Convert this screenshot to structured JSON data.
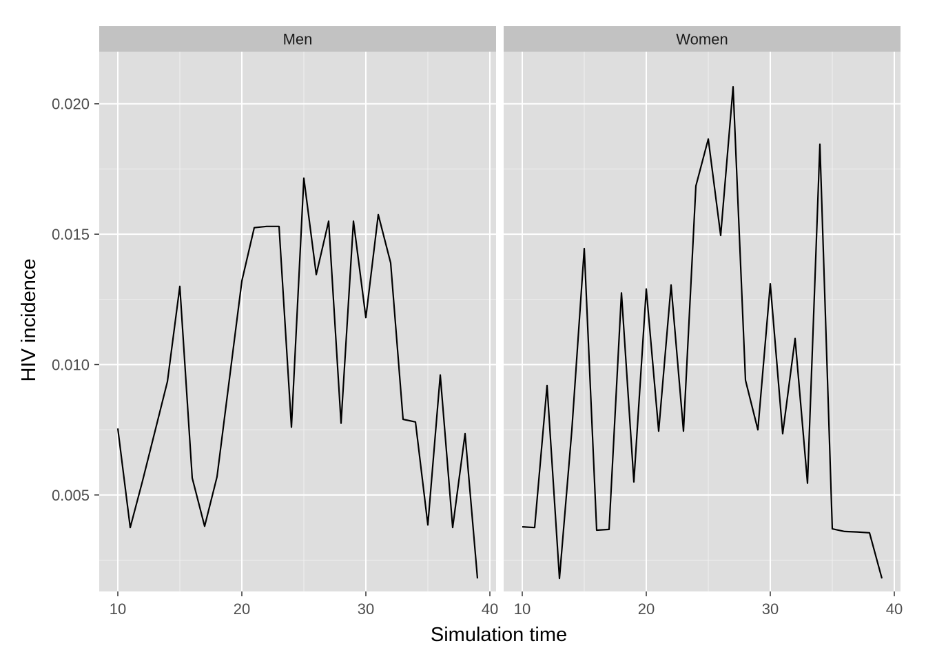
{
  "chart_data": {
    "type": "line",
    "xlabel": "Simulation time",
    "ylabel": "HIV incidence",
    "xlim": [
      8.5,
      40.5
    ],
    "ylim": [
      0.0013,
      0.022
    ],
    "x_ticks": [
      10,
      20,
      30,
      40
    ],
    "y_ticks": [
      0.005,
      0.01,
      0.015,
      0.02
    ],
    "y_tick_labels": [
      "0.005",
      "0.010",
      "0.015",
      "0.020"
    ],
    "grid": true,
    "colors": {
      "panel_bg": "#dedede",
      "strip_bg": "#c2c2c2",
      "grid_major": "#ffffff",
      "line": "#000000"
    },
    "panels": [
      {
        "title": "Men",
        "x": [
          10,
          11,
          12,
          13,
          14,
          15,
          16,
          17,
          18,
          19,
          20,
          21,
          22,
          23,
          24,
          25,
          26,
          27,
          28,
          29,
          30,
          31,
          32,
          33,
          34,
          35,
          36,
          37,
          38,
          39
        ],
        "y": [
          0.00755,
          0.00375,
          0.00555,
          0.00745,
          0.00935,
          0.013,
          0.00565,
          0.0038,
          0.0057,
          0.00945,
          0.0132,
          0.01525,
          0.0153,
          0.0153,
          0.0076,
          0.01715,
          0.01345,
          0.0155,
          0.00775,
          0.0155,
          0.0118,
          0.01575,
          0.0139,
          0.0079,
          0.0078,
          0.00385,
          0.0096,
          0.00375,
          0.00735,
          0.0018
        ]
      },
      {
        "title": "Women",
        "x": [
          10,
          11,
          12,
          13,
          14,
          15,
          16,
          17,
          18,
          19,
          20,
          21,
          22,
          23,
          24,
          25,
          26,
          27,
          28,
          29,
          30,
          31,
          32,
          33,
          34,
          35,
          36,
          37,
          38,
          39
        ],
        "y": [
          0.00378,
          0.00375,
          0.0092,
          0.0018,
          0.0075,
          0.01445,
          0.00365,
          0.00368,
          0.01275,
          0.0055,
          0.0129,
          0.00745,
          0.01305,
          0.00745,
          0.01685,
          0.01865,
          0.01495,
          0.02065,
          0.0094,
          0.0075,
          0.0131,
          0.00735,
          0.011,
          0.00545,
          0.01845,
          0.0037,
          0.0036,
          0.00358,
          0.00355,
          0.0018
        ]
      }
    ]
  }
}
